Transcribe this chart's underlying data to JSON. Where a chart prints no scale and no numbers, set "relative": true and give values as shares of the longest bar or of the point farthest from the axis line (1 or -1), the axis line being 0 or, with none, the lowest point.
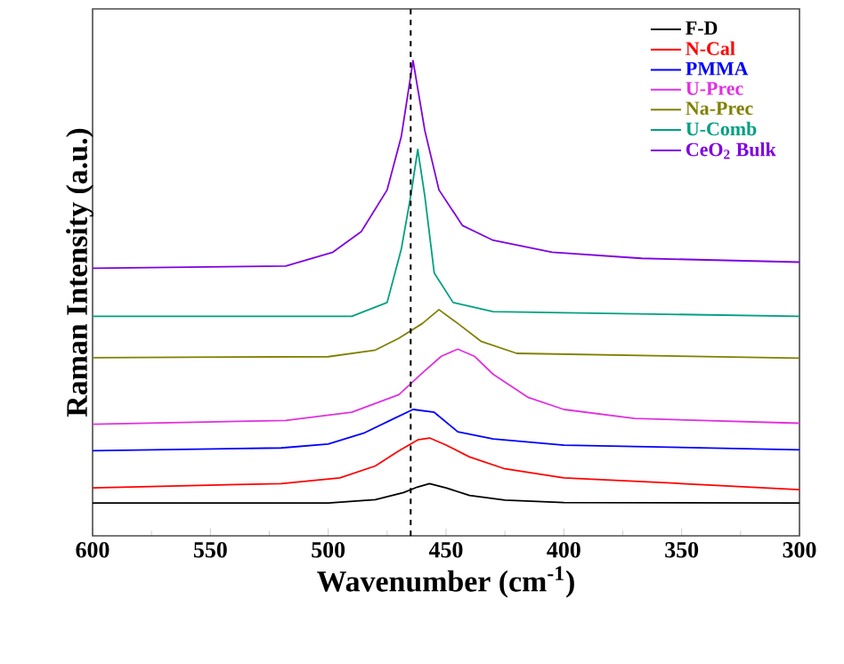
{
  "chart_data": {
    "type": "line",
    "relative": true,
    "xlabel": "Wavenumber (cm$^{-1}$)",
    "ylabel": "Raman Intensity (a.u.)",
    "xlim": [
      600,
      300
    ],
    "xticks": [
      600,
      550,
      500,
      450,
      400,
      350,
      300
    ],
    "legend": "top right",
    "ref_lines": [
      {
        "axis": "x",
        "value": 465,
        "color": "#000000",
        "line_style": "dashed"
      }
    ],
    "series": [
      {
        "name": "F-D",
        "color": "#000000",
        "x": [
          600,
          500,
          480,
          468,
          462,
          457,
          450,
          440,
          425,
          400,
          300
        ],
        "values": [
          0.069,
          0.069,
          0.076,
          0.091,
          0.103,
          0.11,
          0.101,
          0.085,
          0.075,
          0.07,
          0.069
        ]
      },
      {
        "name": "N-Cal",
        "color": "#ff0000",
        "x": [
          600,
          520,
          495,
          480,
          470,
          462,
          457,
          450,
          440,
          425,
          400,
          350,
          300
        ],
        "values": [
          0.101,
          0.11,
          0.122,
          0.147,
          0.179,
          0.202,
          0.206,
          0.191,
          0.166,
          0.141,
          0.122,
          0.11,
          0.097
        ]
      },
      {
        "name": "PMMA",
        "color": "#0000ff",
        "x": [
          600,
          520,
          500,
          485,
          472,
          464,
          455,
          445,
          430,
          400,
          300
        ],
        "values": [
          0.179,
          0.185,
          0.193,
          0.216,
          0.247,
          0.266,
          0.26,
          0.219,
          0.204,
          0.191,
          0.181
        ]
      },
      {
        "name": "U-Prec",
        "color": "#e030e0",
        "x": [
          600,
          518,
          490,
          470,
          460,
          452,
          445,
          438,
          430,
          415,
          400,
          370,
          300
        ],
        "values": [
          0.235,
          0.243,
          0.26,
          0.297,
          0.343,
          0.378,
          0.393,
          0.378,
          0.34,
          0.291,
          0.266,
          0.247,
          0.237
        ]
      },
      {
        "name": "Na-Prec",
        "color": "#808000",
        "x": [
          600,
          500,
          480,
          470,
          460,
          453,
          445,
          435,
          420,
          300
        ],
        "values": [
          0.375,
          0.377,
          0.391,
          0.416,
          0.447,
          0.476,
          0.447,
          0.409,
          0.384,
          0.374
        ]
      },
      {
        "name": "U-Comb",
        "color": "#00a080",
        "x": [
          600,
          490,
          475,
          469,
          465,
          462,
          459,
          455,
          447,
          430,
          300
        ],
        "values": [
          0.462,
          0.462,
          0.491,
          0.603,
          0.715,
          0.813,
          0.715,
          0.553,
          0.491,
          0.472,
          0.462
        ]
      },
      {
        "name": "CeO$_{2}$ Bulk",
        "color": "#7f00e0",
        "x": [
          600,
          518,
          498,
          486,
          475,
          469,
          464,
          459,
          453,
          443,
          430,
          405,
          367,
          300
        ],
        "values": [
          0.563,
          0.568,
          0.597,
          0.64,
          0.728,
          0.84,
          1.0,
          0.853,
          0.728,
          0.653,
          0.622,
          0.597,
          0.584,
          0.576
        ]
      }
    ]
  }
}
